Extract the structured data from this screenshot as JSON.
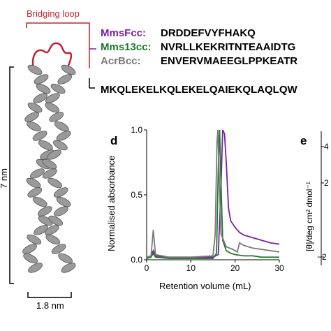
{
  "structure": {
    "bridging_loop_label": "Bridging loop",
    "height_label": "7 nm",
    "width_label": "1.8 nm",
    "loop_color": "#c0232f",
    "helix_color": "#9a9a9a"
  },
  "sequences": [
    {
      "name": "MmsFcc:",
      "sequence": "DRDDEFVYFHAKQ",
      "color": "#7b1fa2"
    },
    {
      "name": "Mms13cc:",
      "sequence": "NVRLLKEKRITNTEAAIDTG",
      "color": "#1e7a2e"
    },
    {
      "name": "AcrBcc:",
      "sequence": "ENVERVMAEEGLPPKEATR",
      "color": "#7a7a7a"
    }
  ],
  "shared_sequence": "MKQLEKELKQLEKELQAIEKQLAQLQW",
  "panel_d": {
    "letter": "d",
    "chart_data": {
      "type": "line",
      "xlabel": "Retention volume (mL)",
      "ylabel": "Normalised absorbance",
      "xlim": [
        0,
        30
      ],
      "ylim": [
        0,
        1.0
      ],
      "xticks": [
        "0",
        "10",
        "20",
        "30"
      ],
      "yticks": [
        "0.0",
        "0.5",
        "1.0"
      ],
      "series": [
        {
          "color": "#7b1fa2",
          "x": [
            0,
            1,
            1.5,
            2,
            5,
            10,
            15,
            16.2,
            16.8,
            17.2,
            17.6,
            18.0,
            18.5,
            19,
            20,
            21,
            22,
            24,
            26,
            28,
            30
          ],
          "y": [
            0.02,
            0.03,
            0.07,
            0.03,
            0.02,
            0.02,
            0.02,
            0.04,
            0.55,
            1.0,
            0.97,
            0.75,
            0.4,
            0.3,
            0.25,
            0.21,
            0.19,
            0.17,
            0.15,
            0.13,
            0.12
          ]
        },
        {
          "color": "#1e7a2e",
          "x": [
            0,
            1,
            1.5,
            2,
            5,
            10,
            15,
            15.8,
            16.2,
            16.5,
            16.8,
            17.2,
            18,
            19,
            20,
            22,
            24,
            26,
            28,
            30
          ],
          "y": [
            0.01,
            0.02,
            0.05,
            0.02,
            0.01,
            0.01,
            0.01,
            0.05,
            0.7,
            1.0,
            0.6,
            0.15,
            0.07,
            0.05,
            0.04,
            0.03,
            0.03,
            0.02,
            0.02,
            0.02
          ]
        },
        {
          "color": "#7a7a7a",
          "x": [
            0,
            1,
            1.5,
            2,
            5,
            10,
            15,
            15.5,
            15.9,
            16.1,
            16.4,
            16.8,
            18,
            19.5,
            20.5,
            21,
            22,
            24,
            26,
            28,
            30
          ],
          "y": [
            0.02,
            0.03,
            0.23,
            0.04,
            0.02,
            0.02,
            0.03,
            0.2,
            0.9,
            1.0,
            0.65,
            0.2,
            0.1,
            0.08,
            0.06,
            0.13,
            0.11,
            0.09,
            0.08,
            0.07,
            0.06
          ]
        }
      ]
    }
  },
  "panel_e": {
    "letter": "e",
    "ylabel": "[θ]/deg cm² dmol⁻¹",
    "ytick_labels": [
      "4",
      "2",
      "−2"
    ]
  }
}
